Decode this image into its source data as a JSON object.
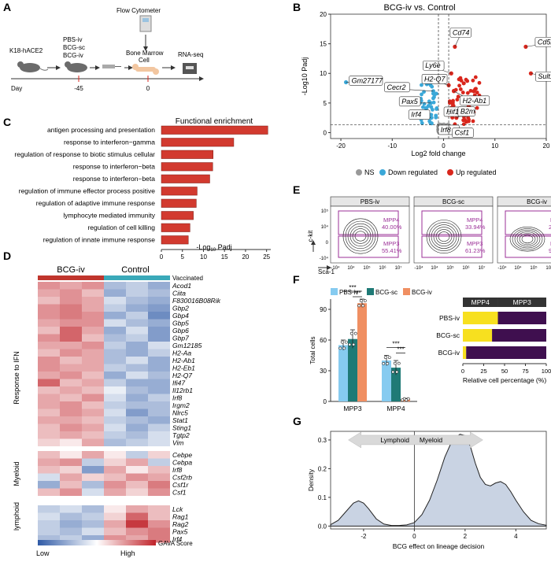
{
  "panel_letters": {
    "A": "A",
    "B": "B",
    "C": "C",
    "D": "D",
    "E": "E",
    "F": "F",
    "G": "G"
  },
  "panelA": {
    "mouse_label": "K18-hACE2",
    "treatments": [
      "PBS-iv",
      "BCG-sc",
      "BCG-iv"
    ],
    "flow_label": "Flow Cytometer",
    "bm_label_1": "Bone Marrow",
    "bm_label_2": "Cell",
    "rnaseq_label": "RNA-seq",
    "day_label": "Day",
    "day_m45": "-45",
    "day_0": "0"
  },
  "chart_data": [
    {
      "id": "B",
      "type": "scatter",
      "title": "BCG-iv vs. Control",
      "xlabel": "Log2 fold change",
      "ylabel": "-Log10 Padj",
      "xlim": [
        -22,
        20
      ],
      "ylim": [
        -1,
        20
      ],
      "xticks": [
        -20,
        -10,
        0,
        10,
        20
      ],
      "yticks": [
        0,
        5,
        10,
        15,
        20
      ],
      "threshold_x": [
        -1,
        1
      ],
      "threshold_y": 1.3,
      "legend": [
        "NS",
        "Down regulated",
        "Up regulated"
      ],
      "colors": {
        "NS": "#999999",
        "Down": "#3ba8d8",
        "Up": "#d9261c"
      },
      "labels": [
        {
          "gene": "Cd5l",
          "x": 16,
          "y": 14.5
        },
        {
          "gene": "Cd74",
          "x": 2.2,
          "y": 14.5
        },
        {
          "gene": "Ly6e",
          "x": 1.5,
          "y": 10
        },
        {
          "gene": "Gm27177",
          "x": -19,
          "y": 8.5
        },
        {
          "gene": "Sult1a1",
          "x": 17,
          "y": 10
        },
        {
          "gene": "Cecr2",
          "x": -2,
          "y": 7
        },
        {
          "gene": "H2-Q7",
          "x": 1,
          "y": 8
        },
        {
          "gene": "H2-Ab1",
          "x": 2,
          "y": 7
        },
        {
          "gene": "Pax5",
          "x": -2.5,
          "y": 5
        },
        {
          "gene": "Irf4",
          "x": -2.5,
          "y": 2.5
        },
        {
          "gene": "Hif1a",
          "x": 1,
          "y": 3
        },
        {
          "gene": "B2m",
          "x": 2.5,
          "y": 2.5
        },
        {
          "gene": "Irf8",
          "x": 0.5,
          "y": 1
        },
        {
          "gene": "Csf1",
          "x": 2,
          "y": 0.5
        }
      ]
    },
    {
      "id": "C",
      "type": "bar",
      "title": "Functional enrichment",
      "xlabel": "-Log10 Padj",
      "xlim": [
        0,
        26
      ],
      "xticks": [
        0,
        5,
        10,
        15,
        20,
        25
      ],
      "categories": [
        "antigen processing and presentation",
        "response to interferon−gamma",
        "regulation of response to biotic stimulus cellular",
        "response to interferon−beta",
        "response to interferon−beta",
        "regulation of immune effector process positive",
        "regulation of adaptive immune response",
        "lymphocyte mediated immunity",
        "regulation of cell killing",
        "regulation of innate immune response"
      ],
      "values": [
        25.3,
        17.2,
        12.3,
        12.2,
        11.5,
        8.5,
        8.3,
        7.6,
        6.8,
        6.4
      ]
    },
    {
      "id": "D",
      "type": "heatmap",
      "columns_groups": [
        "BCG-iv",
        "Control"
      ],
      "annotation_label": "Vaccinated",
      "row_groups": [
        "Response to IFN",
        "Myeloid",
        "lymphoid"
      ],
      "legend_low": "Low",
      "legend_high": "High",
      "legend_title": "GAVA Score",
      "genes": [
        "Acod1",
        "Ciita",
        "F830016B08Rik",
        "Gbp2",
        "Gbp4",
        "Gbp5",
        "Gbp6",
        "Gbp7",
        "Gm12185",
        "H2-Aa",
        "H2-Ab1",
        "H2-Eb1",
        "H2-Q7",
        "Ifi47",
        "Il12rb1",
        "Irf8",
        "Irgm2",
        "Nlrc5",
        "Stat1",
        "Sting1",
        "Tgtp2",
        "Vim",
        "Cebpe",
        "Cebpa",
        "Irf8",
        "Csf2rb",
        "Csf1r",
        "Csf1",
        "Lck",
        "Rag1",
        "Rag2",
        "Pax5",
        "Irf4"
      ],
      "values": [
        [
          0.5,
          0.4,
          0.5,
          -0.4,
          -0.3,
          -0.5
        ],
        [
          0.4,
          0.5,
          0.3,
          -0.5,
          -0.3,
          -0.4
        ],
        [
          0.3,
          0.5,
          0.4,
          -0.2,
          -0.4,
          -0.5
        ],
        [
          0.5,
          0.6,
          0.4,
          -0.3,
          -0.5,
          -0.6
        ],
        [
          0.5,
          0.6,
          0.5,
          -0.5,
          -0.3,
          -0.7
        ],
        [
          0.4,
          0.5,
          0.5,
          -0.2,
          -0.4,
          -0.5
        ],
        [
          0.3,
          0.7,
          0.4,
          -0.5,
          -0.2,
          -0.6
        ],
        [
          0.5,
          0.7,
          0.3,
          -0.4,
          -0.3,
          -0.6
        ],
        [
          0.4,
          0.4,
          0.5,
          -0.3,
          -0.5,
          -0.2
        ],
        [
          0.3,
          0.5,
          0.4,
          -0.4,
          -0.5,
          -0.3
        ],
        [
          0.5,
          0.3,
          0.4,
          -0.4,
          -0.2,
          -0.5
        ],
        [
          0.5,
          0.4,
          0.4,
          -0.3,
          -0.4,
          -0.5
        ],
        [
          0.4,
          0.5,
          0.3,
          -0.5,
          -0.2,
          -0.4
        ],
        [
          0.7,
          0.3,
          0.4,
          -0.3,
          -0.5,
          -0.5
        ],
        [
          0.3,
          0.4,
          0.3,
          -0.1,
          -0.4,
          -0.5
        ],
        [
          0.4,
          0.3,
          0.5,
          -0.2,
          -0.5,
          -0.3
        ],
        [
          0.4,
          0.5,
          0.3,
          -0.3,
          -0.4,
          -0.4
        ],
        [
          0.3,
          0.5,
          0.4,
          -0.2,
          -0.6,
          -0.4
        ],
        [
          0.4,
          0.4,
          0.3,
          -0.3,
          -0.4,
          -0.5
        ],
        [
          0.3,
          0.5,
          0.4,
          -0.2,
          -0.5,
          -0.3
        ],
        [
          0.3,
          0.4,
          0.3,
          -0.3,
          -0.4,
          -0.2
        ],
        [
          0.2,
          0.1,
          0.4,
          -0.4,
          -0.3,
          -0.2
        ],
        [
          0.3,
          0.1,
          0.4,
          0.1,
          -0.3,
          0.2
        ],
        [
          0.4,
          0.5,
          -0.3,
          0.2,
          0.4,
          -0.3
        ],
        [
          0.3,
          0.2,
          -0.6,
          0.4,
          0.1,
          0.3
        ],
        [
          -0.2,
          0.4,
          0.2,
          0.3,
          0.5,
          0.4
        ],
        [
          -0.5,
          0.3,
          -0.4,
          0.5,
          0.3,
          0.6
        ],
        [
          0.3,
          0.5,
          -0.2,
          0.4,
          0.2,
          0.5
        ],
        [
          -0.3,
          -0.2,
          -0.4,
          0.1,
          0.4,
          0.3
        ],
        [
          -0.2,
          -0.4,
          -0.3,
          0.2,
          0.7,
          0.3
        ],
        [
          -0.3,
          -0.5,
          -0.4,
          0.4,
          0.9,
          0.5
        ],
        [
          -0.3,
          -0.4,
          -0.2,
          0.3,
          0.5,
          0.6
        ],
        [
          -0.4,
          -0.3,
          -0.5,
          0.5,
          0.4,
          0.6
        ]
      ]
    },
    {
      "id": "E",
      "type": "scatter",
      "xlabel": "Sca-1",
      "ylabel": "c-kit",
      "panels": [
        {
          "title": "PBS-iv",
          "MPP4": "40.00%",
          "MPP3": "55.41%"
        },
        {
          "title": "BCG-sc",
          "MPP4": "33.94%",
          "MPP3": "61.23%"
        },
        {
          "title": "BCG-iv",
          "MPP4": "2.39%",
          "MPP3": "96.07%"
        }
      ],
      "gate_labels": [
        "MPP4",
        "MPP3"
      ],
      "xticks": [
        "-10^4",
        "0",
        "10^4",
        "10^5",
        "10^6",
        "10^7"
      ],
      "yticks": [
        "10^5",
        "10^4",
        "0",
        "-10^4"
      ]
    },
    {
      "id": "F1",
      "type": "bar",
      "ylabel": "Total cells",
      "ylim": [
        0,
        100
      ],
      "yticks": [
        0,
        30,
        60,
        90
      ],
      "categories": [
        "MPP3",
        "MPP4"
      ],
      "series": [
        {
          "name": "PBS-iv",
          "color": "#86cbf0",
          "values": [
            55,
            40
          ],
          "err": [
            5,
            5
          ]
        },
        {
          "name": "BCG-sc",
          "color": "#1f7a76",
          "values": [
            61,
            33
          ],
          "err": [
            9,
            7
          ]
        },
        {
          "name": "BCG-iv",
          "color": "#f08f62",
          "values": [
            96,
            2
          ],
          "err": [
            4,
            1
          ]
        }
      ],
      "significance": "***"
    },
    {
      "id": "F2",
      "type": "bar",
      "xlabel": "Relative cell percentage (%)",
      "xticks": [
        0,
        25,
        50,
        75,
        100
      ],
      "categories": [
        "PBS-iv",
        "BCG-sc",
        "BCG-iv"
      ],
      "series": [
        {
          "name": "MPP4",
          "color": "#f7e01f",
          "values": [
            42,
            35,
            4
          ]
        },
        {
          "name": "MPP3",
          "color": "#3f0f4f",
          "values": [
            58,
            65,
            96
          ]
        }
      ]
    },
    {
      "id": "G",
      "type": "area",
      "xlabel": "BCG effect on lineage decision",
      "ylabel": "Density",
      "xlim": [
        -3.3,
        5.2
      ],
      "ylim": [
        -0.01,
        0.33
      ],
      "xticks": [
        -2,
        0,
        2,
        4
      ],
      "yticks": [
        0.0,
        0.1,
        0.2,
        0.3
      ],
      "arrow_left": "Lymphoid",
      "arrow_right": "Myeloid",
      "x": [
        -3.3,
        -3.0,
        -2.7,
        -2.4,
        -2.2,
        -2.0,
        -1.8,
        -1.5,
        -1.2,
        -0.9,
        -0.6,
        -0.3,
        0.0,
        0.3,
        0.6,
        0.9,
        1.2,
        1.5,
        1.8,
        2.0,
        2.2,
        2.4,
        2.6,
        2.8,
        3.0,
        3.2,
        3.4,
        3.6,
        3.8,
        4.0,
        4.3,
        4.6,
        4.9,
        5.2
      ],
      "y": [
        0.005,
        0.02,
        0.05,
        0.08,
        0.088,
        0.08,
        0.06,
        0.025,
        0.007,
        0.002,
        0.002,
        0.004,
        0.012,
        0.04,
        0.09,
        0.16,
        0.24,
        0.3,
        0.32,
        0.315,
        0.28,
        0.22,
        0.17,
        0.145,
        0.14,
        0.15,
        0.155,
        0.145,
        0.12,
        0.09,
        0.05,
        0.02,
        0.008,
        0.003
      ]
    }
  ]
}
